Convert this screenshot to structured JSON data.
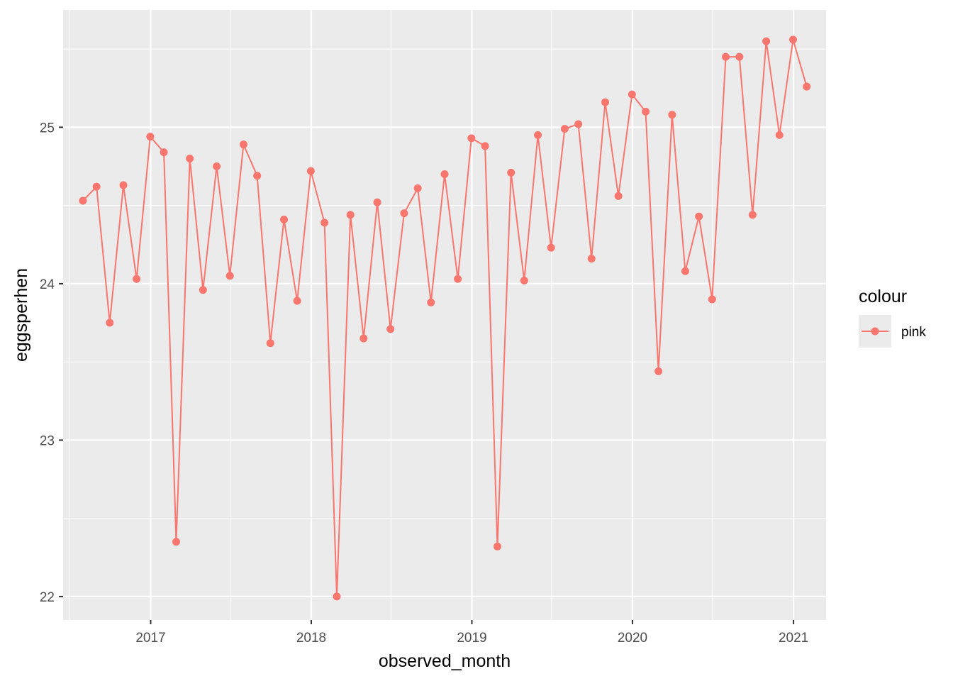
{
  "chart_data": {
    "type": "line",
    "xlabel": "observed_month",
    "ylabel": "eggsperhen",
    "x_tick_labels": [
      "2017",
      "2018",
      "2019",
      "2020",
      "2021"
    ],
    "y_tick_labels": [
      "22",
      "23",
      "24",
      "25"
    ],
    "ylim": [
      21.85,
      25.75
    ],
    "xlim": [
      "2016-06-16",
      "2021-03-16"
    ],
    "grid": true,
    "legend": {
      "title": "colour",
      "position": "right",
      "entries": [
        "pink"
      ]
    },
    "colors": {
      "series": "#F8766D",
      "panel": "#EBEBEB",
      "grid": "#FFFFFF"
    },
    "series": [
      {
        "name": "pink",
        "x": [
          "2016-07-31",
          "2016-08-31",
          "2016-09-30",
          "2016-10-31",
          "2016-11-30",
          "2016-12-31",
          "2017-01-31",
          "2017-02-28",
          "2017-03-31",
          "2017-04-30",
          "2017-05-31",
          "2017-06-30",
          "2017-07-31",
          "2017-08-31",
          "2017-09-30",
          "2017-10-31",
          "2017-11-30",
          "2017-12-31",
          "2018-01-31",
          "2018-02-28",
          "2018-03-31",
          "2018-04-30",
          "2018-05-31",
          "2018-06-30",
          "2018-07-31",
          "2018-08-31",
          "2018-09-30",
          "2018-10-31",
          "2018-11-30",
          "2018-12-31",
          "2019-01-31",
          "2019-02-28",
          "2019-03-31",
          "2019-04-30",
          "2019-05-31",
          "2019-06-30",
          "2019-07-31",
          "2019-08-31",
          "2019-09-30",
          "2019-10-31",
          "2019-11-30",
          "2019-12-31",
          "2020-01-31",
          "2020-02-29",
          "2020-03-31",
          "2020-04-30",
          "2020-05-31",
          "2020-06-30",
          "2020-07-31",
          "2020-08-31",
          "2020-09-30",
          "2020-10-31",
          "2020-11-30",
          "2020-12-31",
          "2021-01-31"
        ],
        "values": [
          24.53,
          24.62,
          23.75,
          24.63,
          24.03,
          24.94,
          24.84,
          22.35,
          24.8,
          23.96,
          24.75,
          24.05,
          24.89,
          24.69,
          23.62,
          24.41,
          23.89,
          24.72,
          24.39,
          22.0,
          24.44,
          23.65,
          24.52,
          23.71,
          24.45,
          24.61,
          23.88,
          24.7,
          24.03,
          24.93,
          24.88,
          22.32,
          24.71,
          24.02,
          24.95,
          24.23,
          24.99,
          25.02,
          24.16,
          25.16,
          24.56,
          25.21,
          25.1,
          23.44,
          25.08,
          24.08,
          24.43,
          23.9,
          25.45,
          25.45,
          24.44,
          25.55,
          24.95,
          25.56,
          25.26
        ]
      }
    ]
  }
}
